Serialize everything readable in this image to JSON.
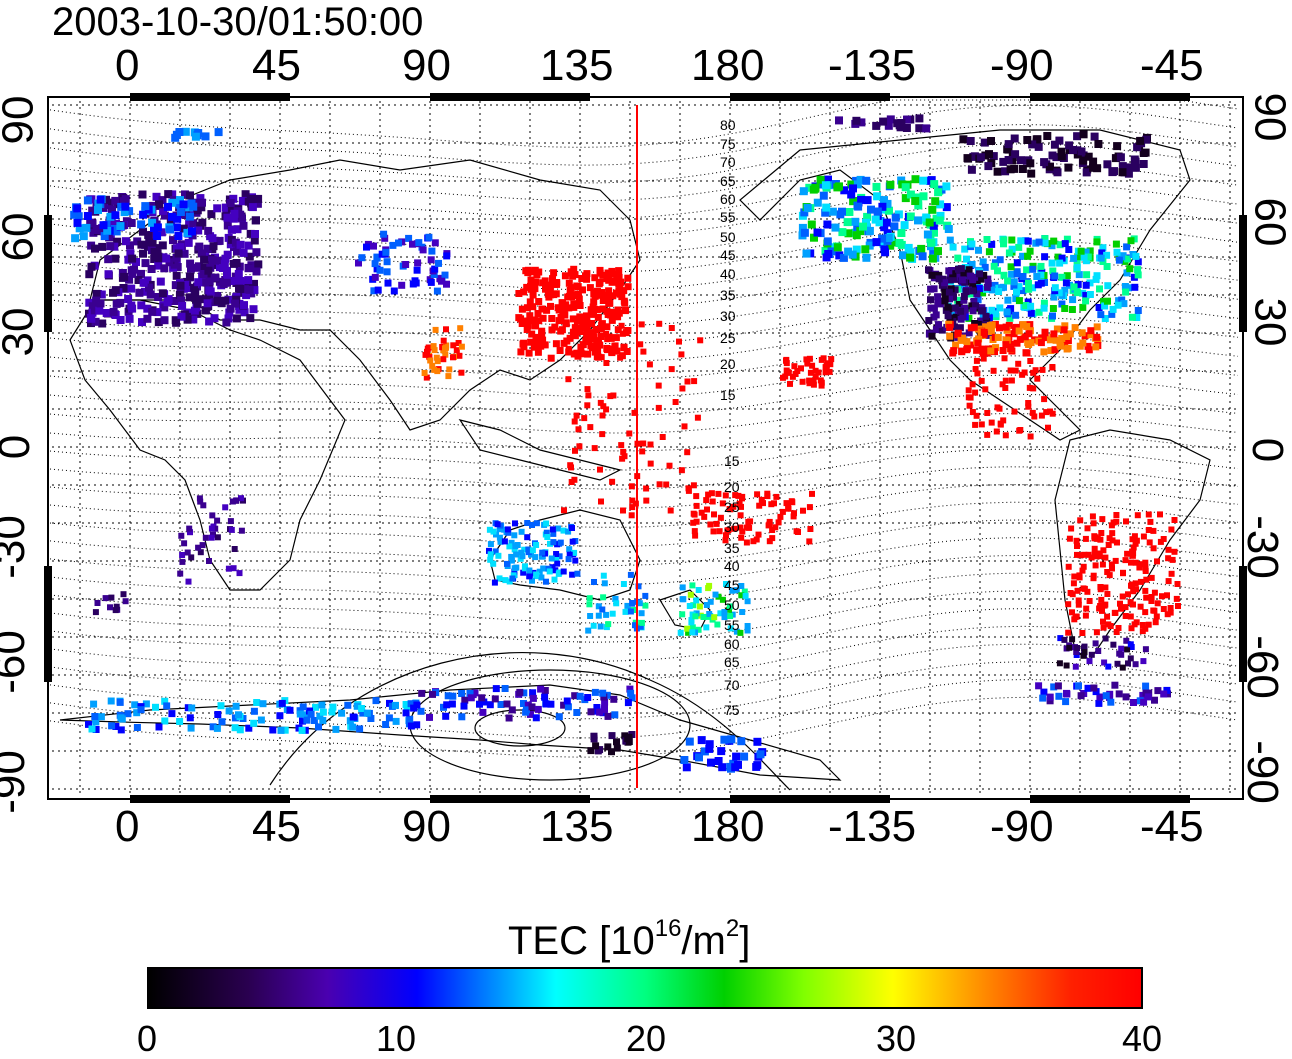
{
  "title": "2003-10-30/01:50:00",
  "x_ticks": [
    "0",
    "45",
    "90",
    "135",
    "180",
    "-135",
    "-90",
    "-45"
  ],
  "y_ticks": [
    "90",
    "60",
    "30",
    "0",
    "-30",
    "-60",
    "-90"
  ],
  "mlat_labels_north": [
    "80",
    "75",
    "70",
    "65",
    "60",
    "55",
    "50",
    "45",
    "40",
    "35",
    "30",
    "25",
    "20",
    "15"
  ],
  "mlat_labels_south": [
    "15",
    "20",
    "25",
    "30",
    "35",
    "40",
    "45",
    "50",
    "55",
    "60",
    "65",
    "70",
    "75"
  ],
  "colorbar": {
    "title_prefix": "TEC  [10",
    "title_exp1": "16",
    "title_mid": "/m",
    "title_exp2": "2",
    "title_suffix": "]",
    "ticks": [
      "0",
      "10",
      "20",
      "30",
      "40"
    ],
    "min": 0,
    "max": 40
  },
  "colors": {
    "red_line": "#ff0000",
    "high_tec": "#ff0000",
    "mid_tec": "#00e0ff",
    "low_tec": "#3a0090",
    "very_low_tec": "#14001e"
  },
  "red_meridian_longitude": 152
}
